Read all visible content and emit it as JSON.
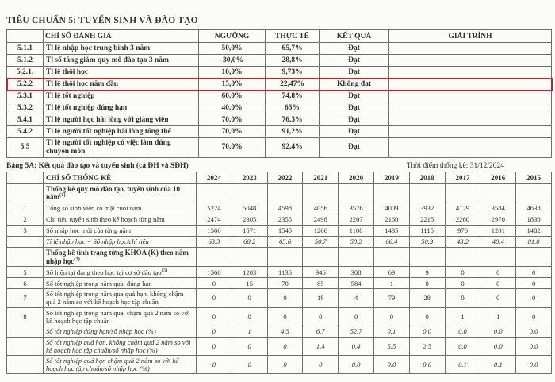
{
  "page": {
    "title": "TIÊU CHUẨN 5: TUYỂN SINH VÀ ĐÀO TẠO"
  },
  "colors": {
    "highlight_border": "#c4242b",
    "border": "#6e6e6e"
  },
  "table1": {
    "headers": {
      "code": "",
      "name": "CHỈ SỐ ĐÁNH GIÁ",
      "threshold": "NGƯỠNG",
      "actual": "THỰC TẾ",
      "result": "KẾT QUẢ",
      "explain": "GIẢI TRÌNH"
    },
    "rows": [
      {
        "code": "5.1.1",
        "name": "Tỉ lệ nhập học trung bình 3 năm",
        "threshold": "50,0%",
        "actual": "65,7%",
        "result": "Đạt",
        "explain": "",
        "highlight": false
      },
      {
        "code": "5.1.2",
        "name": "Tỉ số tăng giảm quy mô đào tạo 3 năm",
        "threshold": "-30,0%",
        "actual": "28,8%",
        "result": "Đạt",
        "explain": "",
        "highlight": false
      },
      {
        "code": "5.2.1.",
        "name": "Tỉ lệ thôi học",
        "threshold": "10,0%",
        "actual": "9,73%",
        "result": "Đạt",
        "explain": "",
        "highlight": false
      },
      {
        "code": "5.2.2",
        "name": "Tỉ lệ thôi học năm đầu",
        "threshold": "15,0%",
        "actual": "22,47%",
        "result": "Không đạt",
        "explain": "",
        "highlight": true
      },
      {
        "code": "5.3.1",
        "name": "Tỉ lệ tốt nghiệp",
        "threshold": "60,0%",
        "actual": "74,8%",
        "result": "Đạt",
        "explain": "",
        "highlight": false
      },
      {
        "code": "5.3.2",
        "name": "Tỉ lệ tốt nghiệp đúng hạn",
        "threshold": "40,0%",
        "actual": "65%",
        "result": "Đạt",
        "explain": "",
        "highlight": false
      },
      {
        "code": "5.4.1",
        "name": "Tỉ lệ người học hài lòng với giảng viên",
        "threshold": "70,0%",
        "actual": "76,3%",
        "result": "Đạt",
        "explain": "",
        "highlight": false
      },
      {
        "code": "5.4.2",
        "name": "Tỉ lệ người tốt nghiệp hài lòng tổng thể",
        "threshold": "70,0%",
        "actual": "91,2%",
        "result": "Đạt",
        "explain": "",
        "highlight": false
      },
      {
        "code": "5.5",
        "name": "Tỉ lệ người tốt nghiệp có việc làm đúng chuyên môn",
        "threshold": "70,0%",
        "actual": "92,4%",
        "result": "Đạt",
        "explain": "",
        "highlight": false
      }
    ]
  },
  "table2": {
    "caption": "Bảng 5A: Kết quả đào tạo và tuyển sinh (cả ĐH và SĐH)",
    "timestamp": "Thời điểm thống kê: 31/12/2024",
    "header_label": "CHỈ SỐ THỐNG KÊ",
    "years": [
      "2024",
      "2023",
      "2022",
      "2021",
      "2020",
      "2019",
      "2018",
      "2017",
      "2016",
      "2015"
    ],
    "rows": [
      {
        "code": "",
        "label": "Thống kê quy mô đào tạo, tuyển sinh của 10 năm",
        "sup": "(1)",
        "style": "section",
        "values": [
          "",
          "",
          "",
          "",
          "",
          "",
          "",
          "",
          "",
          ""
        ]
      },
      {
        "code": "1",
        "label": "Tổng số sinh viên có mặt cuối năm",
        "sup": "",
        "style": "normal",
        "values": [
          "5224",
          "5048",
          "4598",
          "4056",
          "3576",
          "4009",
          "3932",
          "4129",
          "3584",
          "4638"
        ]
      },
      {
        "code": "2",
        "label": "Chỉ tiêu tuyển sinh theo kế hoạch từng năm",
        "sup": "",
        "style": "normal",
        "values": [
          "2474",
          "2305",
          "2355",
          "2498",
          "2207",
          "2160",
          "2215",
          "2260",
          "2970",
          "1830"
        ]
      },
      {
        "code": "3",
        "label": "Số nhập học mới của từng năm",
        "sup": "",
        "style": "normal",
        "values": [
          "1566",
          "1571",
          "1545",
          "1266",
          "1108",
          "1435",
          "1115",
          "976",
          "1201",
          "1482"
        ]
      },
      {
        "code": "",
        "label": "Tỉ lệ nhập học = Số nhập học/chỉ tiêu",
        "sup": "",
        "style": "italic",
        "values": [
          "63.3",
          "68.2",
          "65.6",
          "50.7",
          "50.2",
          "66.4",
          "50.3",
          "43.2",
          "40.4",
          "81.0"
        ]
      },
      {
        "code": "",
        "label": "Thống kê tình trạng từng KHÓA (K) theo năm nhập học",
        "sup": "(2)",
        "style": "section",
        "values": [
          "",
          "",
          "",
          "",
          "",
          "",
          "",
          "",
          "",
          ""
        ]
      },
      {
        "code": "5",
        "label": "Số hiện tại đang theo học tại cơ sở đào tạo",
        "sup": "(3)",
        "style": "normal",
        "values": [
          "1566",
          "1203",
          "1136",
          "946",
          "308",
          "69",
          "9",
          "0",
          "0",
          "0"
        ]
      },
      {
        "code": "6",
        "label": "Số tốt nghiệp trong năm qua, đúng hạn",
        "sup": "",
        "style": "normal",
        "values": [
          "0",
          "15",
          "70",
          "85",
          "584",
          "1",
          "0",
          "0",
          "0",
          "0"
        ]
      },
      {
        "code": "7",
        "label": "Số tốt nghiệp trong năm qua quá hạn, không chậm quá 2 năm so với kế hoạch học tập chuẩn",
        "sup": "",
        "style": "normal",
        "values": [
          "0",
          "0",
          "0",
          "18",
          "4",
          "79",
          "28",
          "0",
          "0",
          "0"
        ]
      },
      {
        "code": "8",
        "label": "Số tốt nghiệp trong năm qua, chậm quá 2 năm so với kế hoạch học tập chuẩn",
        "sup": "",
        "style": "normal",
        "values": [
          "0",
          "0",
          "0",
          "0",
          "0",
          "0",
          "0",
          "1",
          "1",
          "0"
        ]
      },
      {
        "code": "",
        "label": "Số tốt nghiệp đúng hạn/số nhập học (%)",
        "sup": "",
        "style": "italic",
        "values": [
          "0",
          "1",
          "4.5",
          "6.7",
          "52.7",
          "0.1",
          "0.0",
          "0.0",
          "0.0",
          "0.0"
        ]
      },
      {
        "code": "",
        "label": "Số tốt nghiệp quá hạn, không chậm quá 2 năm so với kế hoạch học tập chuẩn/số nhập học (%)",
        "sup": "",
        "style": "italic",
        "values": [
          "0",
          "0",
          "0",
          "1.4",
          "0.4",
          "5.5",
          "2.5",
          "0.0",
          "0.0",
          "0.0"
        ]
      },
      {
        "code": "",
        "label": "Số tốt nghiệp quá hạn chậm quá 2 năm so với kế hoạch học tập chuẩn/số nhập học (%)",
        "sup": "",
        "style": "italic",
        "values": [
          "0",
          "0",
          "0",
          "0",
          "0.0",
          "0.0",
          "0.0",
          "0.1",
          "0.1",
          "0.0"
        ]
      }
    ]
  }
}
